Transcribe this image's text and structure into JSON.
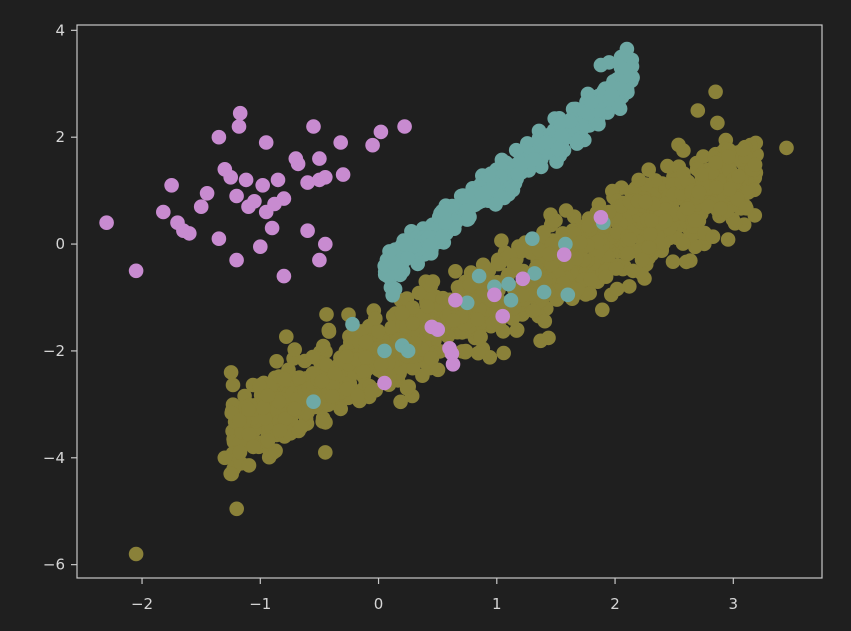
{
  "chart_data": {
    "type": "scatter",
    "title": "",
    "xlabel": "",
    "ylabel": "",
    "xlim": [
      -2.55,
      3.75
    ],
    "ylim": [
      -6.25,
      4.1
    ],
    "xticks": [
      "−2",
      "−1",
      "0",
      "1",
      "2",
      "3"
    ],
    "xtick_values": [
      -2,
      -1,
      0,
      1,
      2,
      3
    ],
    "yticks": [
      "4",
      "2",
      "0",
      "−2",
      "−4",
      "−6"
    ],
    "ytick_values": [
      4,
      2,
      0,
      -2,
      -4,
      -6
    ],
    "grid": false,
    "legend": "none",
    "colors": {
      "background": "#1f1f1f",
      "frame": "#c8c8c8",
      "olive": "#8a8139",
      "teal": "#6ea9a5",
      "violet": "#c88bd0"
    },
    "series": [
      {
        "color": "#8a8139",
        "line": {
          "slope": 1.12,
          "intercept": -2.15,
          "x_min": -1.25,
          "x_max": 3.2,
          "spread": 0.42
        },
        "n_generated": 1100,
        "points": [
          [
            -2.05,
            -5.8
          ],
          [
            3.45,
            1.8
          ],
          [
            2.85,
            2.85
          ],
          [
            2.7,
            2.5
          ],
          [
            -0.45,
            -3.9
          ],
          [
            -1.25,
            -4.3
          ],
          [
            -1.3,
            -4.0
          ],
          [
            -1.1,
            -3.1
          ],
          [
            2.2,
            1.2
          ]
        ]
      },
      {
        "color": "#6ea9a5",
        "line": {
          "slope": 1.72,
          "intercept": -0.6,
          "x_min": 0.05,
          "x_max": 2.15,
          "spread": 0.17
        },
        "n_generated": 380,
        "points": [
          [
            2.1,
            3.65
          ],
          [
            2.05,
            3.5
          ],
          [
            1.95,
            3.4
          ],
          [
            2.05,
            3.3
          ],
          [
            1.88,
            3.35
          ],
          [
            1.97,
            2.8
          ],
          [
            -0.22,
            -1.5
          ],
          [
            0.05,
            -2.0
          ],
          [
            0.2,
            -1.9
          ],
          [
            0.25,
            -2.0
          ],
          [
            -0.55,
            -2.95
          ],
          [
            0.5,
            -1.6
          ],
          [
            0.75,
            -1.1
          ],
          [
            0.85,
            -0.6
          ],
          [
            0.98,
            -0.8
          ],
          [
            1.1,
            -0.75
          ],
          [
            1.12,
            -1.05
          ],
          [
            1.32,
            -0.55
          ],
          [
            1.4,
            -0.9
          ],
          [
            1.6,
            -0.95
          ],
          [
            1.3,
            0.1
          ],
          [
            1.58,
            0.0
          ],
          [
            1.9,
            0.4
          ]
        ]
      },
      {
        "color": "#c88bd0",
        "points": [
          [
            -2.3,
            0.4
          ],
          [
            -2.05,
            -0.5
          ],
          [
            -1.82,
            0.6
          ],
          [
            -1.75,
            1.1
          ],
          [
            -1.7,
            0.4
          ],
          [
            -1.65,
            0.25
          ],
          [
            -1.6,
            0.2
          ],
          [
            -1.5,
            0.7
          ],
          [
            -1.45,
            0.95
          ],
          [
            -1.35,
            0.1
          ],
          [
            -1.35,
            2.0
          ],
          [
            -1.3,
            1.4
          ],
          [
            -1.25,
            1.25
          ],
          [
            -1.2,
            -0.3
          ],
          [
            -1.2,
            0.9
          ],
          [
            -1.18,
            2.2
          ],
          [
            -1.17,
            2.45
          ],
          [
            -1.12,
            1.2
          ],
          [
            -1.1,
            0.7
          ],
          [
            -1.05,
            0.8
          ],
          [
            -1.0,
            -0.05
          ],
          [
            -0.98,
            1.1
          ],
          [
            -0.95,
            1.9
          ],
          [
            -0.95,
            0.6
          ],
          [
            -0.9,
            0.3
          ],
          [
            -0.88,
            0.75
          ],
          [
            -0.85,
            1.2
          ],
          [
            -0.8,
            0.85
          ],
          [
            -0.8,
            -0.6
          ],
          [
            -0.7,
            1.6
          ],
          [
            -0.68,
            1.5
          ],
          [
            -0.6,
            1.15
          ],
          [
            -0.6,
            0.25
          ],
          [
            -0.55,
            2.2
          ],
          [
            -0.5,
            1.2
          ],
          [
            -0.5,
            1.6
          ],
          [
            -0.5,
            -0.3
          ],
          [
            -0.45,
            0.0
          ],
          [
            -0.45,
            1.25
          ],
          [
            -0.32,
            1.9
          ],
          [
            -0.3,
            1.3
          ],
          [
            -0.05,
            1.85
          ],
          [
            0.02,
            2.1
          ],
          [
            0.22,
            2.2
          ],
          [
            0.05,
            -2.6
          ],
          [
            0.45,
            -1.55
          ],
          [
            0.5,
            -1.6
          ],
          [
            0.6,
            -1.95
          ],
          [
            0.62,
            -2.05
          ],
          [
            0.63,
            -2.25
          ],
          [
            0.65,
            -1.05
          ],
          [
            0.98,
            -0.95
          ],
          [
            1.05,
            -1.35
          ],
          [
            1.22,
            -0.65
          ],
          [
            1.57,
            -0.2
          ],
          [
            1.88,
            0.5
          ]
        ]
      }
    ]
  }
}
